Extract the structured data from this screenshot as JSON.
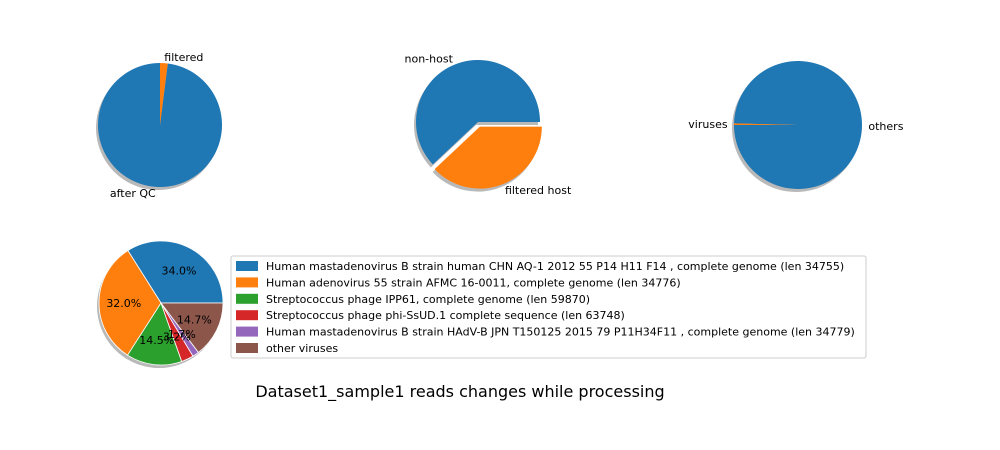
{
  "figure": {
    "title": "Dataset1_sample1 reads changes while processing"
  },
  "colors": {
    "blue": "#1f77b4",
    "orange": "#ff7f0e",
    "green": "#2ca02c",
    "red": "#d62728",
    "purple": "#9467bd",
    "brown": "#8c564b",
    "shadow": "#7f7f7f"
  },
  "chart_data": [
    {
      "type": "pie",
      "title": "",
      "slices": [
        {
          "label": "after QC",
          "value": 98
        },
        {
          "label": "filtered",
          "value": 2
        }
      ]
    },
    {
      "type": "pie",
      "title": "",
      "slices": [
        {
          "label": "non-host",
          "value": 62
        },
        {
          "label": "filtered host",
          "value": 38
        }
      ]
    },
    {
      "type": "pie",
      "title": "",
      "slices": [
        {
          "label": "others",
          "value": 99.6
        },
        {
          "label": "viruses",
          "value": 0.4
        }
      ]
    },
    {
      "type": "pie",
      "title": "",
      "slices": [
        {
          "label": "Human mastadenovirus B strain human CHN AQ-1 2012 55 P14 H11 F14 , complete genome (len 34755)",
          "value": 34.0,
          "pct": "34.0%"
        },
        {
          "label": "Human adenovirus 55 strain AFMC 16-0011, complete genome (len 34776)",
          "value": 32.0,
          "pct": "32.0%"
        },
        {
          "label": "Streptococcus phage IPP61, complete genome (len 59870)",
          "value": 14.5,
          "pct": "14.5%"
        },
        {
          "label": "Streptococcus phage phi-SsUD.1 complete sequence (len 63748)",
          "value": 3.2,
          "pct": "3.2%"
        },
        {
          "label": "Human mastadenovirus B strain HAdV-B JPN T150125 2015 79 P11H34F11 , complete genome (len 34779)",
          "value": 1.7,
          "pct": "1.7%"
        },
        {
          "label": "other viruses",
          "value": 14.7,
          "pct": "14.7%"
        }
      ],
      "legend": "right"
    }
  ]
}
